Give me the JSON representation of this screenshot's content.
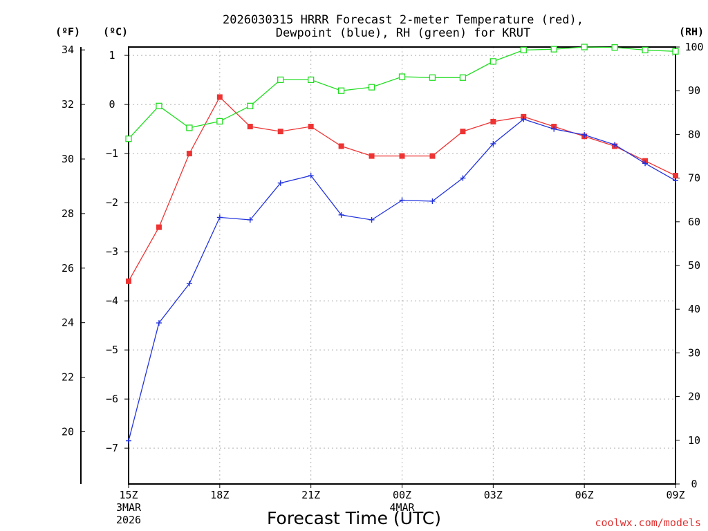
{
  "chart_data": {
    "type": "line",
    "title_line1": "2026030315 HRRR Forecast 2-meter Temperature (red),",
    "title_line2": "Dewpoint (blue), RH (green) for KRUT",
    "xlabel": "Forecast Time (UTC)",
    "credit": "coolwx.com/models",
    "units": {
      "fahrenheit": "(ºF)",
      "celsius": "(ºC)",
      "rh": "(RH)"
    },
    "x_hours": [
      0,
      1,
      2,
      3,
      4,
      5,
      6,
      7,
      8,
      9,
      10,
      11,
      12,
      13,
      14,
      15,
      16,
      17,
      18
    ],
    "x_ticks": [
      {
        "hour": 0,
        "label": "15Z",
        "date": "3MAR",
        "year": "2026"
      },
      {
        "hour": 3,
        "label": "18Z"
      },
      {
        "hour": 6,
        "label": "21Z"
      },
      {
        "hour": 9,
        "label": "00Z",
        "date": "4MAR"
      },
      {
        "hour": 12,
        "label": "03Z"
      },
      {
        "hour": 15,
        "label": "06Z"
      },
      {
        "hour": 18,
        "label": "09Z"
      }
    ],
    "celsius_ticks": [
      "1",
      "0",
      "−1",
      "−2",
      "−3",
      "−4",
      "−5",
      "−6",
      "−7"
    ],
    "fahrenheit_ticks": [
      "34",
      "32",
      "30",
      "28",
      "26",
      "24",
      "22",
      "20"
    ],
    "rh_ticks": [
      "100",
      "90",
      "80",
      "70",
      "60",
      "50",
      "40",
      "30",
      "20",
      "10",
      "0"
    ],
    "ylim_celsius": [
      -7.73,
      1.17
    ],
    "ylim_rh": [
      0,
      100
    ],
    "series": [
      {
        "name": "Temperature",
        "color": "#ee3333",
        "marker": "filled-square",
        "axis": "celsius",
        "values": [
          -3.6,
          -2.5,
          -1.0,
          0.15,
          -0.45,
          -0.55,
          -0.45,
          -0.85,
          -1.05,
          -1.05,
          -1.05,
          -0.55,
          -0.35,
          -0.25,
          -0.45,
          -0.65,
          -0.85,
          -1.15,
          -1.45
        ]
      },
      {
        "name": "Dewpoint",
        "color": "#2233dd",
        "marker": "plus",
        "axis": "celsius",
        "values": [
          -6.85,
          -4.45,
          -3.65,
          -2.3,
          -2.35,
          -1.6,
          -1.45,
          -2.25,
          -2.35,
          -1.95,
          -1.97,
          -1.5,
          -0.8,
          -0.3,
          -0.5,
          -0.62,
          -0.82,
          -1.2,
          -1.55
        ]
      },
      {
        "name": "RH",
        "color": "#22dd22",
        "marker": "open-square",
        "axis": "rh",
        "values": [
          79,
          86.5,
          81.5,
          83,
          86.5,
          92.5,
          92.5,
          90,
          90.8,
          93.2,
          93,
          93,
          96.7,
          99.3,
          99.5,
          100,
          99.9,
          99.3,
          99
        ]
      }
    ]
  }
}
